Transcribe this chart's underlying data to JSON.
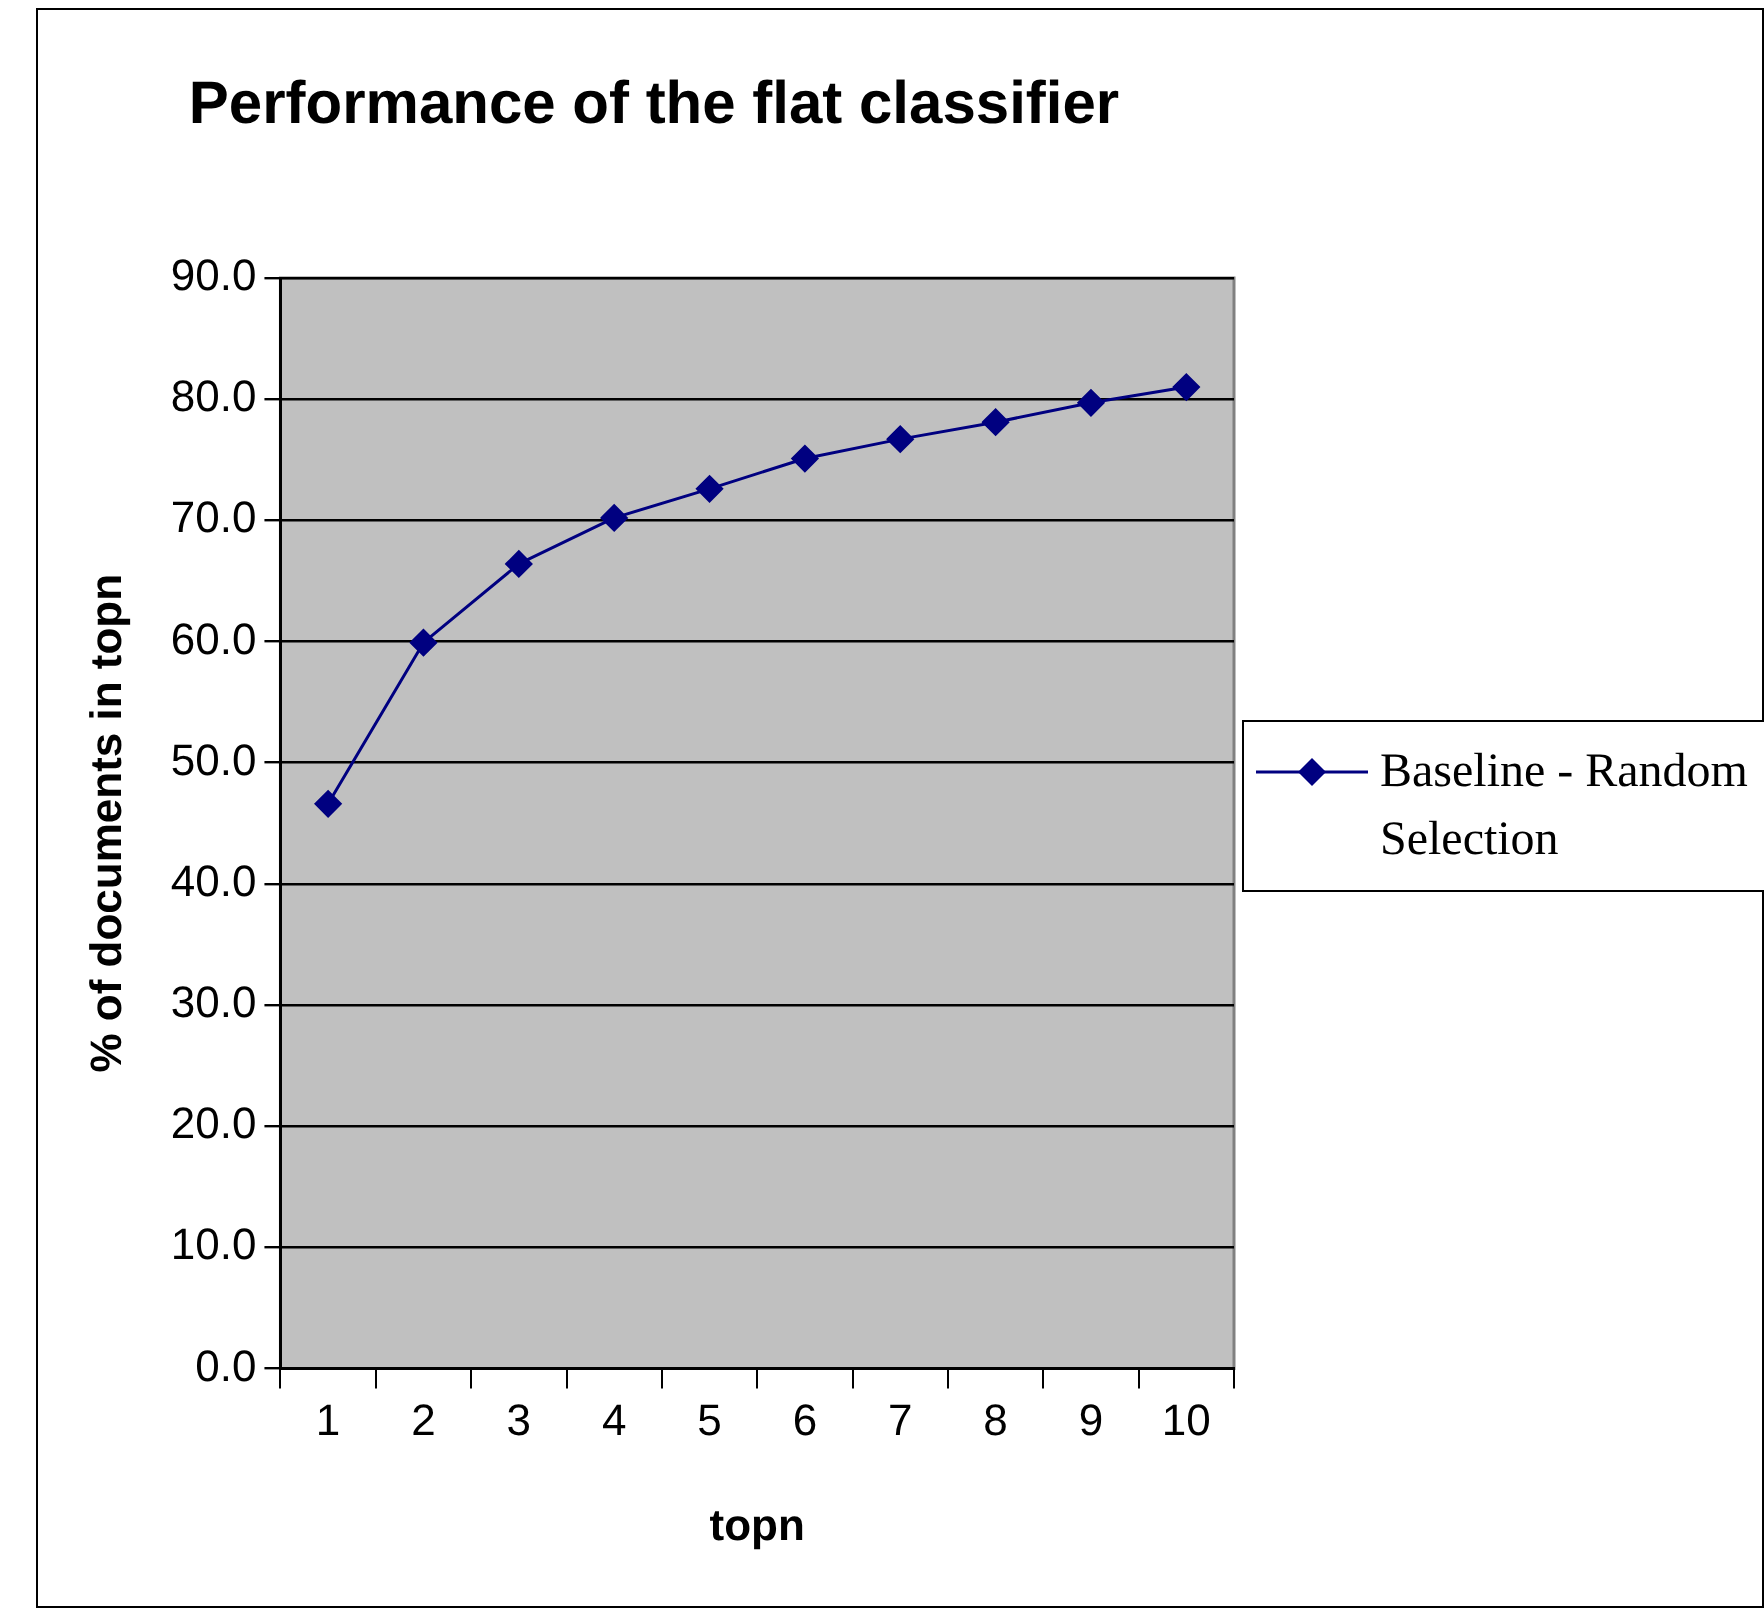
{
  "chart_data": {
    "type": "line",
    "title": "Performance of the flat classifier",
    "xlabel": "topn",
    "ylabel": "% of documents in topn",
    "categories": [
      "1",
      "2",
      "3",
      "4",
      "5",
      "6",
      "7",
      "8",
      "9",
      "10"
    ],
    "series": [
      {
        "name": "Baseline - Random Selection",
        "color": "#000080",
        "values": [
          46.6,
          59.9,
          66.4,
          70.2,
          72.6,
          75.1,
          76.7,
          78.1,
          79.7,
          81.0
        ]
      }
    ],
    "ylim": [
      0,
      90
    ],
    "yticks": [
      {
        "value": 0,
        "label": "0.0"
      },
      {
        "value": 10,
        "label": "10.0"
      },
      {
        "value": 20,
        "label": "20.0"
      },
      {
        "value": 30,
        "label": "30.0"
      },
      {
        "value": 40,
        "label": "40.0"
      },
      {
        "value": 50,
        "label": "50.0"
      },
      {
        "value": 60,
        "label": "60.0"
      },
      {
        "value": 70,
        "label": "70.0"
      },
      {
        "value": 80,
        "label": "80.0"
      },
      {
        "value": 90,
        "label": "90.0"
      }
    ],
    "grid": "y",
    "legend": "right",
    "marker": "diamond",
    "line_style": "solid"
  }
}
